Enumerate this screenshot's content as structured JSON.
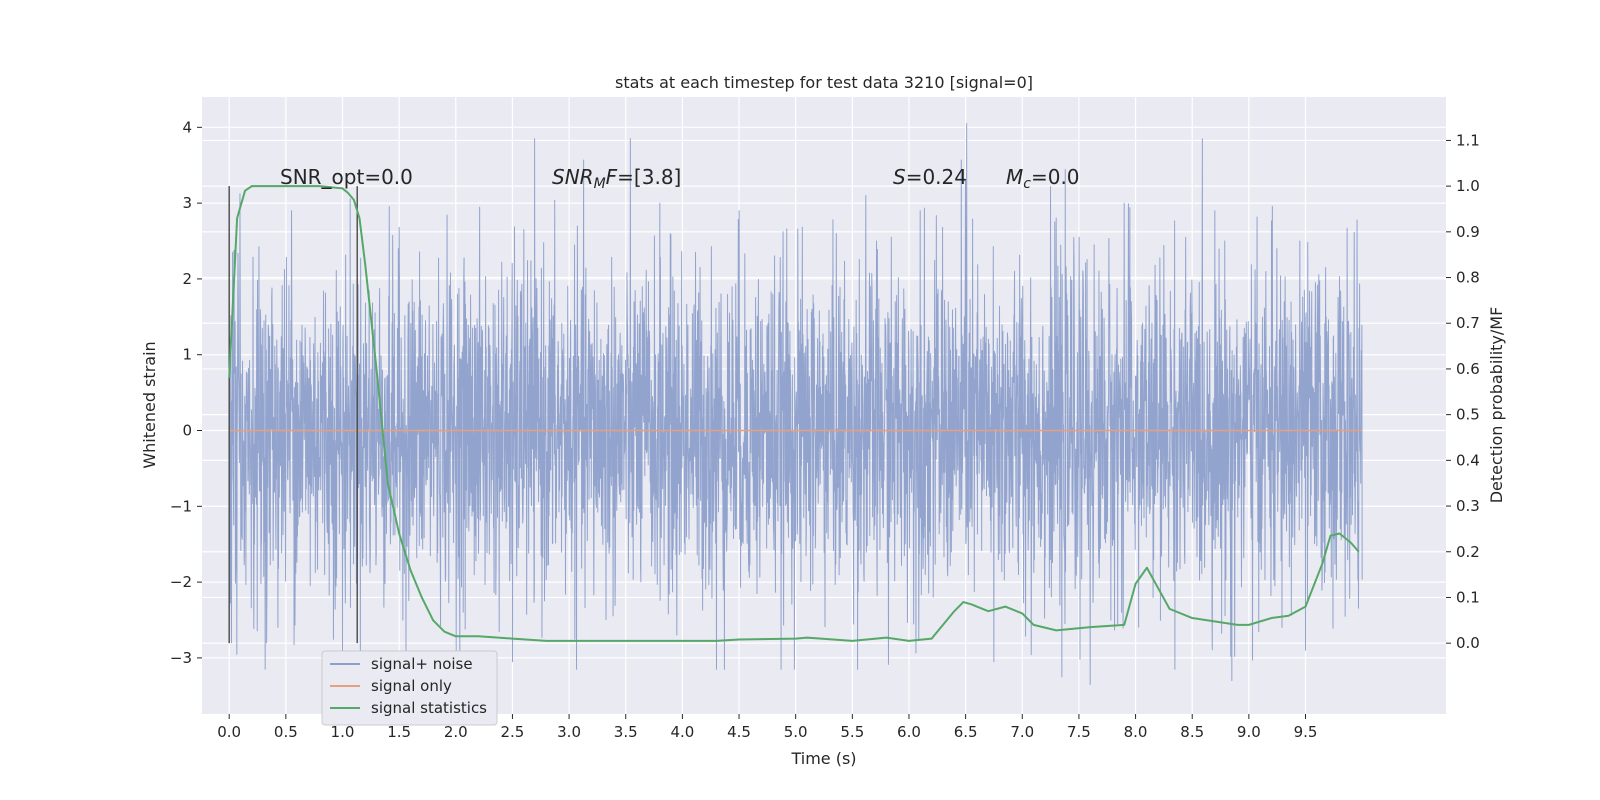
{
  "chart_data": {
    "type": "line",
    "title": "stats at each timestep for test data 3210 [signal=0]",
    "xlabel": "Time (s)",
    "ylabel_left": "Whitened strain",
    "ylabel_right": "Detection probability/MF",
    "xlim": [
      -0.24,
      10.74
    ],
    "ylim_left": [
      -3.74,
      4.4
    ],
    "ylim_right": [
      -0.155,
      1.195
    ],
    "x_ticks": [
      "0.0",
      "0.5",
      "1.0",
      "1.5",
      "2.0",
      "2.5",
      "3.0",
      "3.5",
      "4.0",
      "4.5",
      "5.0",
      "5.5",
      "6.0",
      "6.5",
      "7.0",
      "7.5",
      "8.0",
      "8.5",
      "9.0",
      "9.5"
    ],
    "y_left_ticks": [
      "−3",
      "−2",
      "−1",
      "0",
      "1",
      "2",
      "3",
      "4"
    ],
    "y_right_ticks": [
      "0.0",
      "0.1",
      "0.2",
      "0.3",
      "0.4",
      "0.5",
      "0.6",
      "0.7",
      "0.8",
      "0.9",
      "1.0",
      "1.1"
    ],
    "grid": true,
    "legend_placement": "lower-left",
    "annotations": {
      "snr_opt": "SNR_opt=0.0",
      "snr_mf_var": "SNR",
      "snr_mf_sub": "M",
      "snr_mf_var2": "F",
      "snr_mf_val": "=[3.8]",
      "s_var": "S",
      "s_val": "=0.24",
      "mc_var": "M",
      "mc_sub": "c",
      "mc_val": "=0.0"
    },
    "vertical_markers_x": [
      0.0,
      1.13
    ],
    "series": [
      {
        "name": "signal+ noise",
        "color": "#8da0cb",
        "x_range": [
          0.0,
          10.0
        ],
        "typical_band": [
          -1.5,
          1.5
        ],
        "max": 4.05,
        "min": -3.35,
        "prominent_peaks": [
          [
            0.03,
            2.35
          ],
          [
            0.55,
            2.9
          ],
          [
            1.0,
            2.5
          ],
          [
            2.6,
            2.65
          ],
          [
            3.8,
            3.0
          ],
          [
            4.5,
            2.9
          ],
          [
            5.62,
            3.1
          ],
          [
            6.1,
            2.9
          ],
          [
            6.51,
            4.05
          ],
          [
            6.5,
            3.3
          ],
          [
            7.9,
            3.0
          ],
          [
            8.7,
            2.9
          ],
          [
            9.45,
            2.5
          ]
        ],
        "prominent_troughs": [
          [
            0.02,
            -2.8
          ],
          [
            0.33,
            -2.8
          ],
          [
            1.0,
            -2.95
          ],
          [
            2.5,
            -3.05
          ],
          [
            3.95,
            -2.7
          ],
          [
            4.3,
            -3.15
          ],
          [
            6.75,
            -3.05
          ],
          [
            7.35,
            -3.25
          ],
          [
            7.6,
            -3.35
          ],
          [
            8.85,
            -3.3
          ],
          [
            9.5,
            -2.9
          ]
        ]
      },
      {
        "name": "signal only",
        "color": "#e5a080",
        "x": [
          0.0,
          10.0
        ],
        "values": [
          0.0,
          0.0
        ]
      },
      {
        "name": "signal statistics",
        "color": "#55a868",
        "axis": "right",
        "x": [
          0.0,
          0.07,
          0.14,
          0.2,
          0.3,
          0.5,
          0.8,
          1.0,
          1.05,
          1.1,
          1.15,
          1.2,
          1.3,
          1.4,
          1.5,
          1.6,
          1.7,
          1.8,
          1.9,
          2.0,
          2.2,
          2.5,
          2.8,
          3.0,
          3.5,
          4.0,
          4.3,
          4.5,
          5.0,
          5.1,
          5.5,
          5.8,
          6.0,
          6.2,
          6.3,
          6.4,
          6.48,
          6.55,
          6.7,
          6.85,
          7.0,
          7.1,
          7.3,
          7.6,
          7.9,
          8.0,
          8.1,
          8.2,
          8.3,
          8.5,
          8.9,
          9.0,
          9.2,
          9.35,
          9.5,
          9.65,
          9.72,
          9.8,
          9.9,
          9.97
        ],
        "values": [
          0.58,
          0.93,
          0.99,
          1.0,
          1.0,
          1.0,
          1.0,
          0.995,
          0.985,
          0.97,
          0.93,
          0.83,
          0.6,
          0.35,
          0.24,
          0.16,
          0.1,
          0.05,
          0.025,
          0.015,
          0.015,
          0.01,
          0.005,
          0.005,
          0.005,
          0.005,
          0.005,
          0.008,
          0.01,
          0.012,
          0.005,
          0.012,
          0.005,
          0.01,
          0.04,
          0.07,
          0.09,
          0.085,
          0.07,
          0.08,
          0.065,
          0.04,
          0.028,
          0.035,
          0.04,
          0.13,
          0.165,
          0.12,
          0.075,
          0.055,
          0.04,
          0.04,
          0.055,
          0.06,
          0.08,
          0.175,
          0.235,
          0.24,
          0.22,
          0.2
        ]
      }
    ]
  }
}
